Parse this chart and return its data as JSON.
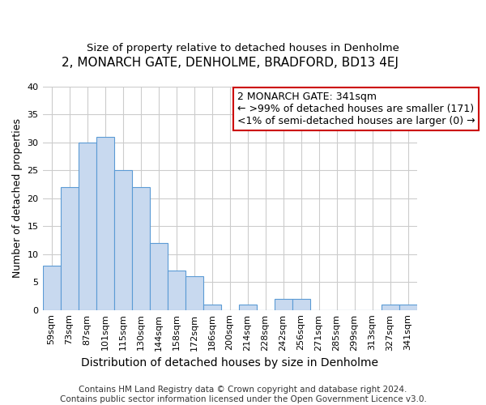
{
  "title": "2, MONARCH GATE, DENHOLME, BRADFORD, BD13 4EJ",
  "subtitle": "Size of property relative to detached houses in Denholme",
  "xlabel": "Distribution of detached houses by size in Denholme",
  "ylabel": "Number of detached properties",
  "categories": [
    "59sqm",
    "73sqm",
    "87sqm",
    "101sqm",
    "115sqm",
    "130sqm",
    "144sqm",
    "158sqm",
    "172sqm",
    "186sqm",
    "200sqm",
    "214sqm",
    "228sqm",
    "242sqm",
    "256sqm",
    "271sqm",
    "285sqm",
    "299sqm",
    "313sqm",
    "327sqm",
    "341sqm"
  ],
  "values": [
    8,
    22,
    30,
    31,
    25,
    22,
    12,
    7,
    6,
    1,
    0,
    1,
    0,
    2,
    2,
    0,
    0,
    0,
    0,
    1,
    1
  ],
  "bar_color": "#c8d9ef",
  "bar_edge_color": "#5b9bd5",
  "ylim": [
    0,
    40
  ],
  "yticks": [
    0,
    5,
    10,
    15,
    20,
    25,
    30,
    35,
    40
  ],
  "annotation_line1": "2 MONARCH GATE: 341sqm",
  "annotation_line2": "← >99% of detached houses are smaller (171)",
  "annotation_line3": "<1% of semi-detached houses are larger (0) →",
  "annotation_box_color": "#ffffff",
  "annotation_box_edge_color": "#cc0000",
  "footer_text": "Contains HM Land Registry data © Crown copyright and database right 2024.\nContains public sector information licensed under the Open Government Licence v3.0.",
  "background_color": "#ffffff",
  "plot_bg_color": "#ffffff",
  "grid_color": "#cccccc",
  "title_fontsize": 11,
  "subtitle_fontsize": 9.5,
  "xlabel_fontsize": 10,
  "ylabel_fontsize": 9,
  "tick_fontsize": 8,
  "annotation_fontsize": 9,
  "footer_fontsize": 7.5
}
